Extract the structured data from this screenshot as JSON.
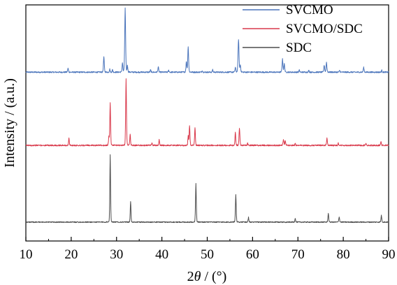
{
  "chart_data": {
    "type": "line",
    "title": "",
    "xlabel_parts": [
      "2",
      "θ",
      " / (°)"
    ],
    "ylabel": "Intensity / (a.u.)",
    "xlim": [
      10,
      90
    ],
    "ylim": [
      0,
      100
    ],
    "x_ticks": [
      10,
      20,
      30,
      40,
      50,
      60,
      70,
      80,
      90
    ],
    "x_tick_labels": [
      "10",
      "20",
      "30",
      "40",
      "50",
      "60",
      "70",
      "80",
      "90"
    ],
    "y_tick_labels": false,
    "grid": false,
    "legend_position": "top-right",
    "series": [
      {
        "name": "SVCMO",
        "color": "#4a74bb",
        "baseline": 71.5,
        "noise": 0.28,
        "peaks": [
          {
            "x": 19.3,
            "h": 1.6,
            "w": 0.14
          },
          {
            "x": 27.2,
            "h": 6.5,
            "w": 0.14
          },
          {
            "x": 28.5,
            "h": 1.3,
            "w": 0.12
          },
          {
            "x": 29.1,
            "h": 1.0,
            "w": 0.12
          },
          {
            "x": 31.3,
            "h": 4.0,
            "w": 0.13
          },
          {
            "x": 31.9,
            "h": 27.0,
            "w": 0.15
          },
          {
            "x": 32.4,
            "h": 3.0,
            "w": 0.12
          },
          {
            "x": 37.5,
            "h": 1.0,
            "w": 0.12
          },
          {
            "x": 39.2,
            "h": 2.3,
            "w": 0.13
          },
          {
            "x": 41.5,
            "h": 0.8,
            "w": 0.12
          },
          {
            "x": 45.4,
            "h": 4.5,
            "w": 0.14
          },
          {
            "x": 45.8,
            "h": 11.0,
            "w": 0.14
          },
          {
            "x": 48.9,
            "h": 0.8,
            "w": 0.12
          },
          {
            "x": 51.2,
            "h": 1.0,
            "w": 0.12
          },
          {
            "x": 56.2,
            "h": 2.0,
            "w": 0.13
          },
          {
            "x": 56.9,
            "h": 14.0,
            "w": 0.16
          },
          {
            "x": 57.3,
            "h": 3.0,
            "w": 0.13
          },
          {
            "x": 66.6,
            "h": 5.5,
            "w": 0.15
          },
          {
            "x": 67.0,
            "h": 3.5,
            "w": 0.14
          },
          {
            "x": 70.3,
            "h": 0.9,
            "w": 0.12
          },
          {
            "x": 72.4,
            "h": 0.8,
            "w": 0.12
          },
          {
            "x": 75.8,
            "h": 3.0,
            "w": 0.14
          },
          {
            "x": 76.3,
            "h": 4.2,
            "w": 0.14
          },
          {
            "x": 79.2,
            "h": 0.8,
            "w": 0.12
          },
          {
            "x": 84.5,
            "h": 2.0,
            "w": 0.14
          },
          {
            "x": 88.5,
            "h": 0.8,
            "w": 0.12
          }
        ]
      },
      {
        "name": "SVCMO/SDC",
        "color": "#d9394b",
        "baseline": 40.5,
        "noise": 0.28,
        "peaks": [
          {
            "x": 19.5,
            "h": 3.0,
            "w": 0.12
          },
          {
            "x": 28.3,
            "h": 3.5,
            "w": 0.12
          },
          {
            "x": 28.6,
            "h": 18.0,
            "w": 0.13
          },
          {
            "x": 32.1,
            "h": 28.5,
            "w": 0.13
          },
          {
            "x": 33.0,
            "h": 5.0,
            "w": 0.12
          },
          {
            "x": 37.8,
            "h": 1.0,
            "w": 0.12
          },
          {
            "x": 39.4,
            "h": 2.3,
            "w": 0.12
          },
          {
            "x": 45.8,
            "h": 4.0,
            "w": 0.12
          },
          {
            "x": 46.1,
            "h": 8.5,
            "w": 0.13
          },
          {
            "x": 47.3,
            "h": 7.5,
            "w": 0.13
          },
          {
            "x": 56.2,
            "h": 5.5,
            "w": 0.13
          },
          {
            "x": 57.1,
            "h": 7.5,
            "w": 0.14
          },
          {
            "x": 58.9,
            "h": 1.0,
            "w": 0.12
          },
          {
            "x": 66.8,
            "h": 2.6,
            "w": 0.14
          },
          {
            "x": 67.2,
            "h": 1.8,
            "w": 0.14
          },
          {
            "x": 69.4,
            "h": 0.8,
            "w": 0.12
          },
          {
            "x": 76.4,
            "h": 3.0,
            "w": 0.14
          },
          {
            "x": 78.9,
            "h": 1.0,
            "w": 0.12
          },
          {
            "x": 85.0,
            "h": 1.0,
            "w": 0.13
          },
          {
            "x": 88.3,
            "h": 1.6,
            "w": 0.13
          }
        ]
      },
      {
        "name": "SDC",
        "color": "#4d4d4d",
        "baseline": 8.0,
        "noise": 0.22,
        "peaks": [
          {
            "x": 28.6,
            "h": 28.5,
            "w": 0.12
          },
          {
            "x": 33.1,
            "h": 8.8,
            "w": 0.12
          },
          {
            "x": 47.5,
            "h": 16.3,
            "w": 0.13
          },
          {
            "x": 56.3,
            "h": 11.8,
            "w": 0.13
          },
          {
            "x": 59.1,
            "h": 2.0,
            "w": 0.12
          },
          {
            "x": 69.4,
            "h": 1.7,
            "w": 0.12
          },
          {
            "x": 76.7,
            "h": 3.8,
            "w": 0.13
          },
          {
            "x": 79.1,
            "h": 2.3,
            "w": 0.13
          },
          {
            "x": 88.4,
            "h": 2.8,
            "w": 0.13
          }
        ]
      }
    ]
  }
}
